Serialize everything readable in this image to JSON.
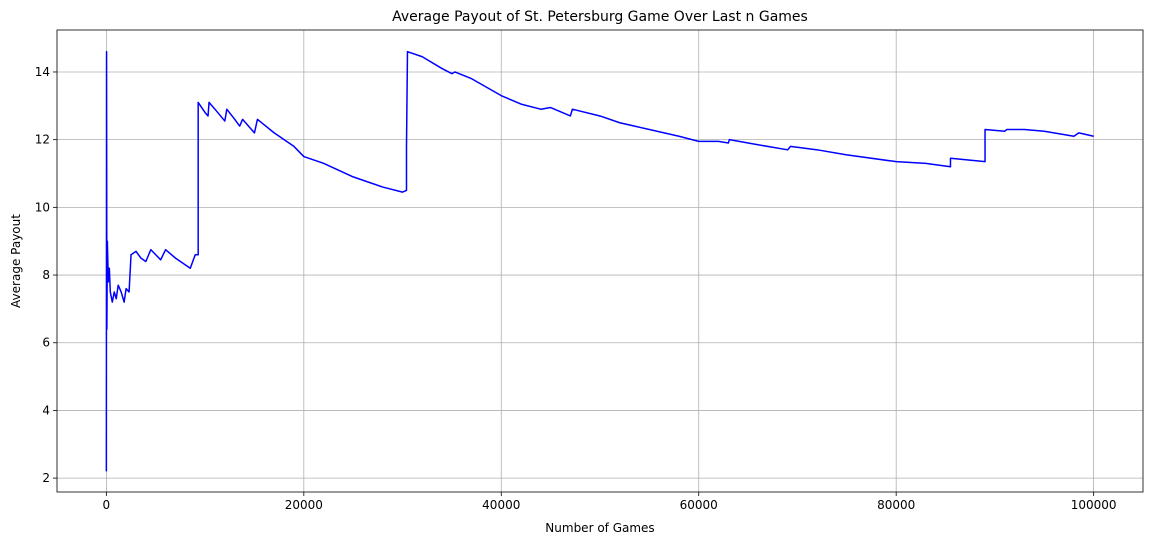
{
  "chart_data": {
    "type": "line",
    "title": "Average Payout of St. Petersburg Game Over Last n Games",
    "x_label": "Number of Games",
    "y_label": "Average Payout",
    "color": "#0000ff",
    "grid": true,
    "xlim": [
      -5000,
      105000
    ],
    "ylim": [
      1.59,
      15.24
    ],
    "xticks": [
      0,
      20000,
      40000,
      60000,
      80000,
      100000
    ],
    "yticks": [
      2,
      4,
      6,
      8,
      10,
      12,
      14
    ],
    "x": [
      0,
      20,
      50,
      100,
      200,
      300,
      400,
      600,
      800,
      1000,
      1200,
      1500,
      1800,
      2000,
      2300,
      2500,
      3000,
      3500,
      4000,
      4500,
      5000,
      5500,
      6000,
      7000,
      8000,
      8500,
      9000,
      9300,
      9300,
      10000,
      10300,
      10400,
      11000,
      12000,
      12200,
      13000,
      13500,
      13800,
      15000,
      15300,
      17000,
      19000,
      20000,
      21000,
      22000,
      25000,
      28000,
      30000,
      30400,
      30400,
      30500,
      32000,
      34000,
      35000,
      35300,
      37000,
      40000,
      42000,
      44000,
      45000,
      47000,
      47200,
      50000,
      52000,
      55000,
      58000,
      60000,
      62000,
      63000,
      63100,
      66000,
      69000,
      69300,
      72000,
      75000,
      80000,
      83000,
      85500,
      85500,
      89000,
      89000,
      91000,
      91200,
      93000,
      95000,
      98000,
      98500,
      100000
    ],
    "values": [
      2.2,
      14.6,
      6.4,
      9.0,
      7.8,
      8.2,
      7.5,
      7.2,
      7.5,
      7.3,
      7.7,
      7.5,
      7.2,
      7.6,
      7.5,
      8.6,
      8.7,
      8.5,
      8.4,
      8.75,
      8.6,
      8.45,
      8.75,
      8.5,
      8.3,
      8.2,
      8.6,
      8.6,
      13.1,
      12.8,
      12.7,
      13.1,
      12.9,
      12.55,
      12.9,
      12.6,
      12.4,
      12.6,
      12.2,
      12.6,
      12.2,
      11.8,
      11.5,
      11.4,
      11.3,
      10.9,
      10.6,
      10.45,
      10.5,
      11.8,
      14.6,
      14.45,
      14.1,
      13.95,
      14.0,
      13.8,
      13.3,
      13.05,
      12.9,
      12.95,
      12.7,
      12.9,
      12.7,
      12.5,
      12.3,
      12.1,
      11.95,
      11.95,
      11.9,
      12.0,
      11.85,
      11.7,
      11.8,
      11.7,
      11.55,
      11.35,
      11.3,
      11.2,
      11.45,
      11.35,
      12.3,
      12.25,
      12.3,
      12.3,
      12.25,
      12.1,
      12.2,
      12.1
    ]
  }
}
